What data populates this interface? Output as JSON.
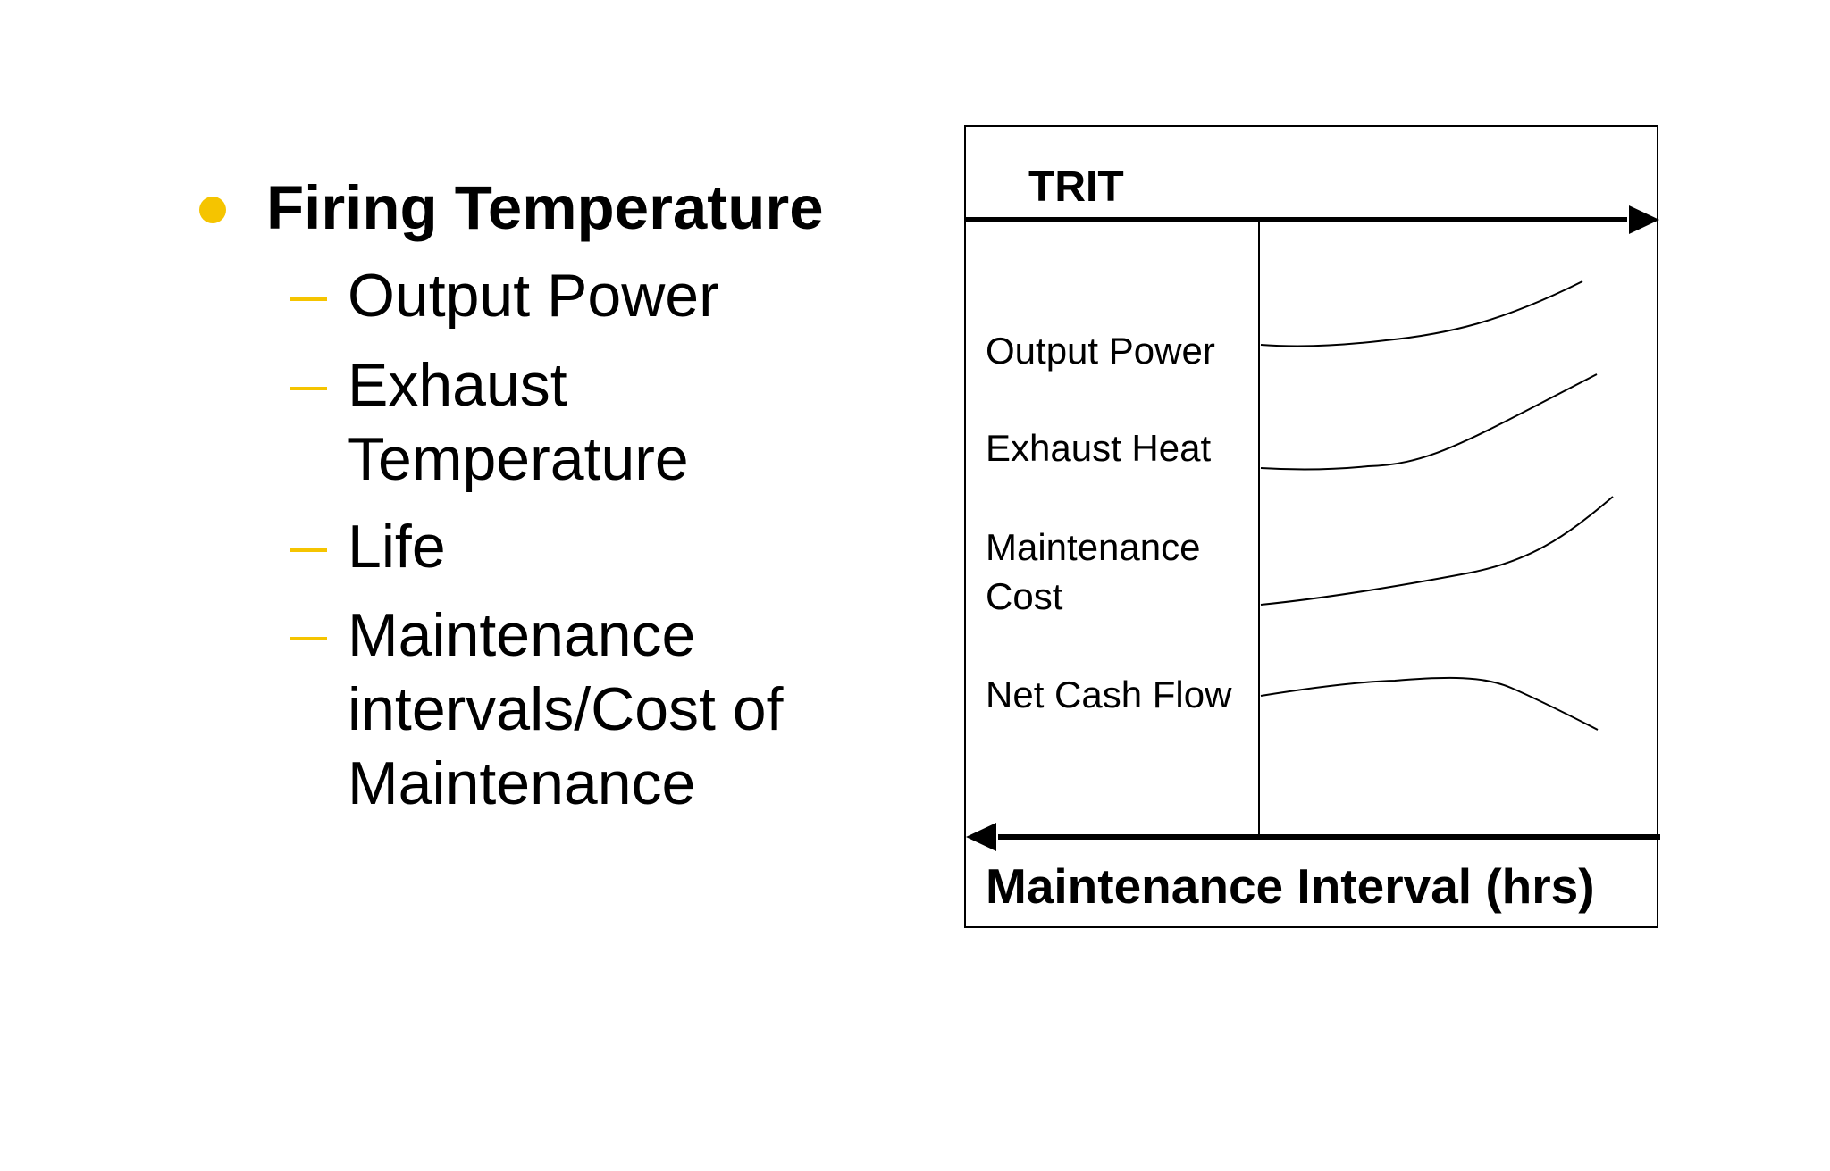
{
  "colors": {
    "bullet_accent": "#f5c400",
    "text": "#000000",
    "line": "#000000"
  },
  "bullets": {
    "main": "Firing Temperature",
    "sub": [
      "Output Power",
      "Exhaust\nTemperature",
      "Life",
      "Maintenance\nintervals/Cost of\nMaintenance"
    ]
  },
  "diagram": {
    "top_axis_label": "TRIT",
    "bottom_axis_label": "Maintenance Interval (hrs)",
    "rows": [
      "Output Power",
      "Exhaust Heat",
      "Maintenance\nCost",
      "Net Cash Flow"
    ]
  }
}
